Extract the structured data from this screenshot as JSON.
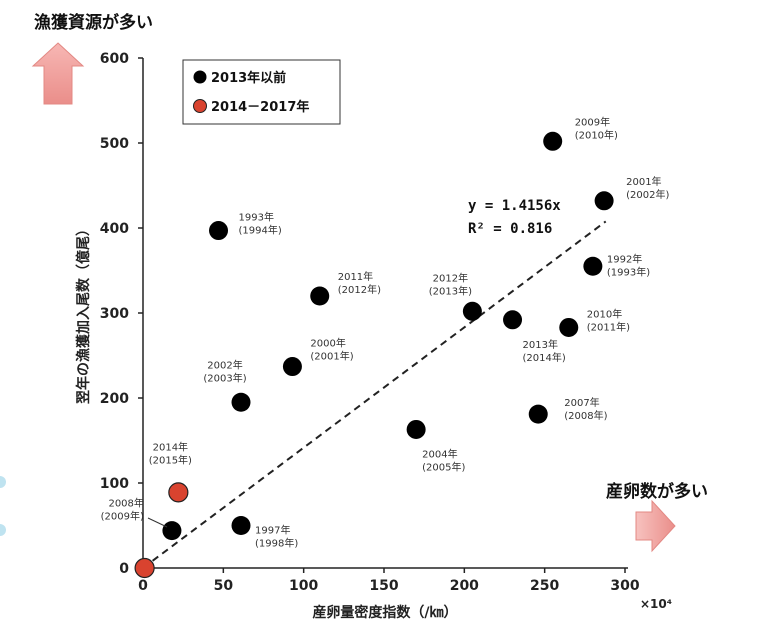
{
  "header_left": "漁獲資源が多い",
  "header_right": "産卵数が多い",
  "chart_data": {
    "type": "scatter",
    "xlabel": "産卵量密度指数（/㎞）",
    "x_multiplier": "×10⁴",
    "ylabel": "翌年の漁獲加入尾数（億尾）",
    "xlim": [
      0,
      300
    ],
    "ylim": [
      0,
      600
    ],
    "xticks": [
      0,
      50,
      100,
      150,
      200,
      250,
      300
    ],
    "yticks": [
      0,
      100,
      200,
      300,
      400,
      500,
      600
    ],
    "grid": false,
    "legend_position": "top-left",
    "series": [
      {
        "name": "2013年以前",
        "color": "#000000",
        "points": [
          {
            "x": 47,
            "y": 397,
            "label": [
              "1993年",
              "(1994年)"
            ]
          },
          {
            "x": 110,
            "y": 320,
            "label": [
              "2011年",
              "(2012年)"
            ]
          },
          {
            "x": 205,
            "y": 302,
            "label": [
              "2012年",
              "(2013年)"
            ]
          },
          {
            "x": 230,
            "y": 292,
            "label": [
              "2013年",
              "(2014年)"
            ]
          },
          {
            "x": 93,
            "y": 237,
            "label": [
              "2000年",
              "(2001年)"
            ]
          },
          {
            "x": 61,
            "y": 195,
            "label": [
              "2002年",
              "(2003年)"
            ]
          },
          {
            "x": 170,
            "y": 163,
            "label": [
              "2004年",
              "(2005年)"
            ]
          },
          {
            "x": 246,
            "y": 181,
            "label": [
              "2007年",
              "(2008年)"
            ]
          },
          {
            "x": 255,
            "y": 502,
            "label": [
              "2009年",
              "(2010年)"
            ]
          },
          {
            "x": 287,
            "y": 432,
            "label": [
              "2001年",
              "(2002年)"
            ]
          },
          {
            "x": 280,
            "y": 355,
            "label": [
              "1992年",
              "(1993年)"
            ]
          },
          {
            "x": 265,
            "y": 283,
            "label": [
              "2010年",
              "(2011年)"
            ]
          },
          {
            "x": 61,
            "y": 50,
            "label": [
              "1997年",
              "(1998年)"
            ]
          },
          {
            "x": 18,
            "y": 44,
            "label": [
              "2008年",
              "(2009年)"
            ]
          }
        ]
      },
      {
        "name": "2014－2017年",
        "color": "#d9432f",
        "points": [
          {
            "x": 22,
            "y": 89,
            "label": [
              "2014年",
              "(2015年)"
            ]
          },
          {
            "x": 1,
            "y": 0,
            "label": [
              "",
              ""
            ]
          }
        ]
      }
    ],
    "trendline": {
      "equation": "y = 1.4156x",
      "r2": "R² = 0.816",
      "slope": 1.4156,
      "x_range": [
        0,
        288
      ]
    }
  }
}
